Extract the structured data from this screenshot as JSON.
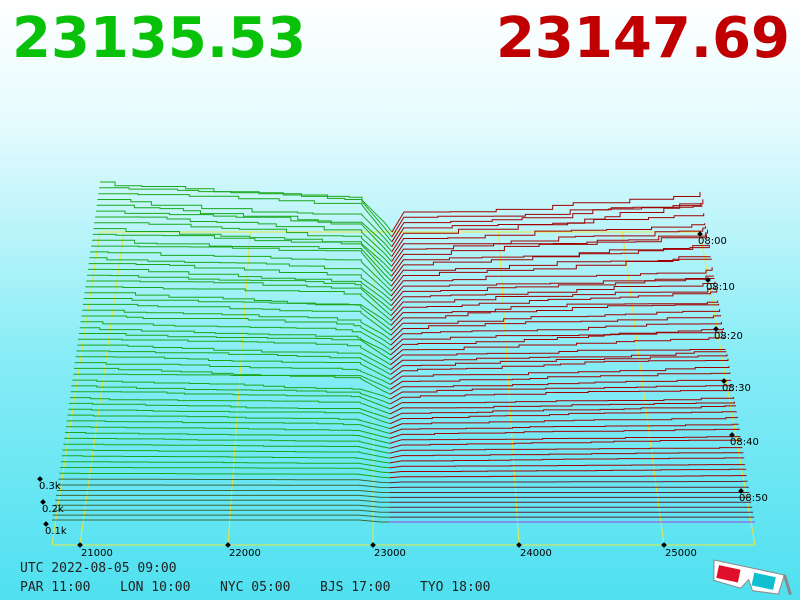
{
  "bid": "23135.53",
  "ask": "23147.69",
  "price_ticks": [
    "21000",
    "22000",
    "23000",
    "24000",
    "25000"
  ],
  "time_ticks": [
    "08:00",
    "08:10",
    "08:20",
    "08:30",
    "08:40",
    "08:50"
  ],
  "depth_ticks": [
    "0.3k",
    "0.2k",
    "0.1k"
  ],
  "utc": "UTC 2022-08-05 09:00",
  "clocks": [
    "PAR 11:00",
    "LON 10:00",
    "NYC 05:00",
    "BJS 17:00",
    "TYO 18:00"
  ]
}
